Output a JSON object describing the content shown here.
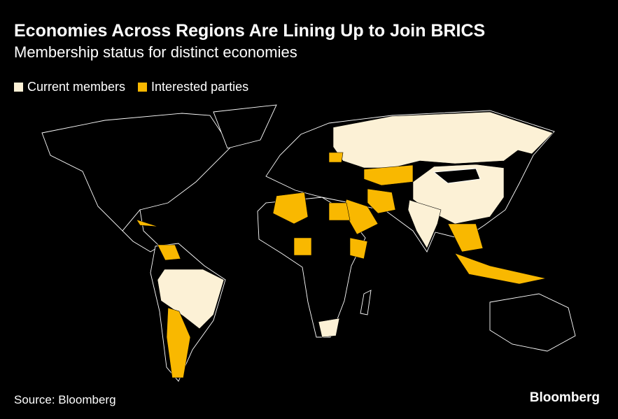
{
  "header": {
    "title": "Economies Across Regions Are Lining Up to Join BRICS",
    "subtitle": "Membership status for distinct economies"
  },
  "legend": [
    {
      "label": "Current members",
      "color": "#fcf1d6"
    },
    {
      "label": "Interested parties",
      "color": "#f9b800"
    }
  ],
  "footer": {
    "source": "Source: Bloomberg",
    "brand": "Bloomberg"
  }
}
